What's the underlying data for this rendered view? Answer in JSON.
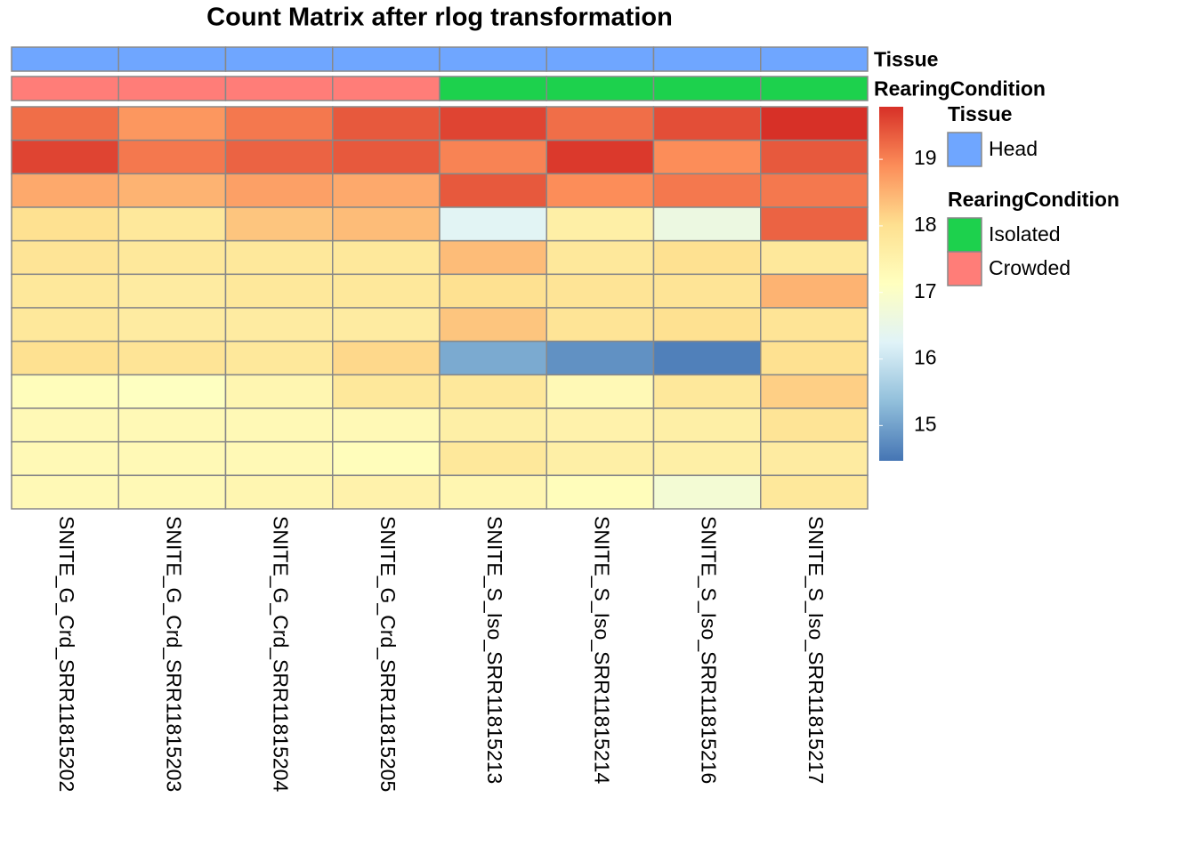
{
  "chart_data": {
    "type": "heatmap",
    "title": "Count Matrix after rlog transformation",
    "columns": [
      "SNITE_G_Crd_SRR11815202",
      "SNITE_G_Crd_SRR11815203",
      "SNITE_G_Crd_SRR11815204",
      "SNITE_G_Crd_SRR11815205",
      "SNITE_S_Iso_SRR11815213",
      "SNITE_S_Iso_SRR11815214",
      "SNITE_S_Iso_SRR11815216",
      "SNITE_S_Iso_SRR11815217"
    ],
    "rows": [
      null,
      null,
      null,
      null,
      null,
      null,
      null,
      null,
      null,
      null,
      null,
      null
    ],
    "values": [
      [
        19.2,
        18.8,
        19.1,
        19.4,
        19.6,
        19.2,
        19.5,
        19.8
      ],
      [
        19.6,
        19.1,
        19.3,
        19.4,
        19.0,
        19.7,
        18.9,
        19.4
      ],
      [
        18.6,
        18.5,
        18.7,
        18.6,
        19.4,
        18.9,
        19.1,
        19.1
      ],
      [
        18.0,
        17.8,
        18.3,
        18.4,
        16.3,
        17.6,
        16.6,
        19.3
      ],
      [
        17.9,
        17.8,
        17.8,
        17.8,
        18.4,
        17.8,
        18.0,
        17.8
      ],
      [
        17.8,
        17.7,
        17.8,
        17.8,
        18.0,
        17.9,
        17.9,
        18.5
      ],
      [
        17.8,
        17.7,
        17.7,
        17.7,
        18.3,
        17.9,
        18.0,
        17.9
      ],
      [
        18.0,
        17.9,
        17.8,
        18.1,
        15.1,
        14.8,
        14.6,
        18.0
      ],
      [
        17.2,
        17.1,
        17.4,
        17.8,
        17.8,
        17.3,
        17.8,
        18.2
      ],
      [
        17.3,
        17.3,
        17.3,
        17.3,
        17.6,
        17.5,
        17.6,
        17.9
      ],
      [
        17.3,
        17.3,
        17.3,
        17.2,
        17.8,
        17.6,
        17.6,
        17.7
      ],
      [
        17.3,
        17.3,
        17.4,
        17.5,
        17.4,
        17.2,
        16.8,
        17.8
      ]
    ],
    "zlim": [
      14.47,
      19.79
    ],
    "zticks": [
      15,
      16,
      17,
      18,
      19
    ],
    "colorscale": [
      "#4575b4",
      "#91bfdb",
      "#e0f3f8",
      "#ffffbf",
      "#fee090",
      "#fc8d59",
      "#d73027"
    ],
    "annotations": [
      {
        "name": "Tissue",
        "values": [
          "Head",
          "Head",
          "Head",
          "Head",
          "Head",
          "Head",
          "Head",
          "Head"
        ],
        "levels": [
          {
            "label": "Head",
            "color": "#6fa6ff"
          }
        ]
      },
      {
        "name": "RearingCondition",
        "values": [
          "Crowded",
          "Crowded",
          "Crowded",
          "Crowded",
          "Isolated",
          "Isolated",
          "Isolated",
          "Isolated"
        ],
        "levels": [
          {
            "label": "Isolated",
            "color": "#1dd14d"
          },
          {
            "label": "Crowded",
            "color": "#ff7d78"
          }
        ]
      }
    ]
  }
}
